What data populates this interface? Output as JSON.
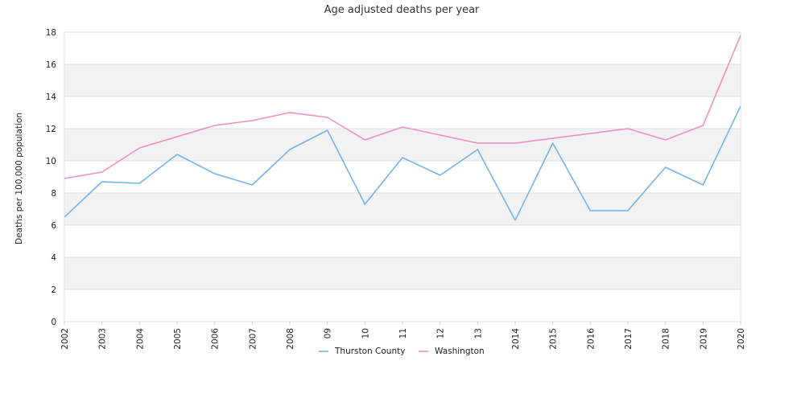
{
  "chart_data": {
    "type": "line",
    "title": "Age adjusted deaths per year",
    "xlabel": "",
    "ylabel": "Deaths per 100,000 population",
    "ylim": [
      0,
      18
    ],
    "yticks": [
      0,
      2,
      4,
      6,
      8,
      10,
      12,
      14,
      16,
      18
    ],
    "categories": [
      "2002",
      "2003",
      "2004",
      "2005",
      "2006",
      "2007",
      "2008",
      "09",
      "10",
      "11",
      "12",
      "13",
      "2014",
      "2015",
      "2016",
      "2017",
      "2018",
      "2019",
      "2020"
    ],
    "grid": "alternating horizontal bands",
    "legend_position": "bottom",
    "series": [
      {
        "name": "Thurston County",
        "color": "#74b3ec",
        "values": [
          6.5,
          8.7,
          8.6,
          10.4,
          9.2,
          8.5,
          10.7,
          11.9,
          7.3,
          10.2,
          9.1,
          10.7,
          6.3,
          11.1,
          6.9,
          6.9,
          9.6,
          8.5,
          13.4
        ]
      },
      {
        "name": "Washington",
        "color": "#f08fbd",
        "values": [
          8.9,
          9.3,
          10.8,
          11.5,
          12.2,
          12.5,
          13.0,
          12.7,
          11.3,
          12.1,
          11.6,
          11.1,
          11.1,
          11.4,
          11.7,
          12.0,
          11.3,
          12.2,
          17.8
        ]
      }
    ]
  }
}
